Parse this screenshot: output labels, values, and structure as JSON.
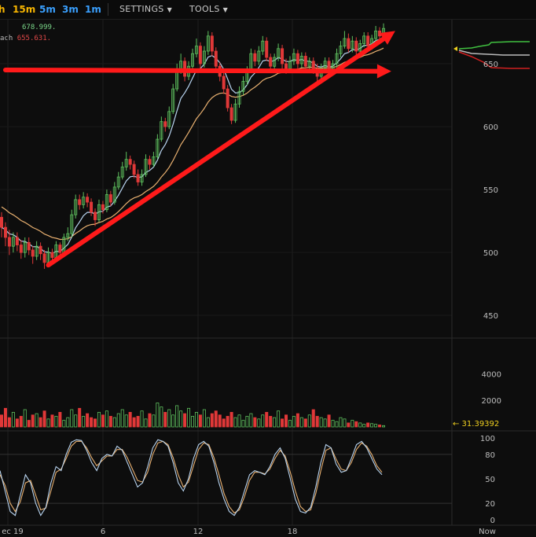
{
  "toolbar": {
    "timeframes": [
      {
        "label": "h",
        "color": "#f7b500"
      },
      {
        "label": "15m",
        "color": "#f7b500"
      },
      {
        "label": "5m",
        "color": "#3aa0ff"
      },
      {
        "label": "3m",
        "color": "#3aa0ff"
      },
      {
        "label": "1m",
        "color": "#3aa0ff"
      }
    ],
    "settings_label": "SETTINGS",
    "tools_label": "TOOLS"
  },
  "legend": {
    "line1_value": "678.999.",
    "line1_color": "#7bd88a",
    "line2_prefix": "ach",
    "line2_value": "655.631.",
    "line2_color": "#e04848"
  },
  "chart_data": {
    "type": "candlestick",
    "price_axis": {
      "ticks": [
        650,
        600,
        550,
        500,
        450
      ],
      "ylim": [
        432,
        685
      ]
    },
    "x_axis": {
      "labels": [
        "ec 19",
        "6",
        "12",
        "18",
        "Now"
      ]
    },
    "candles": [
      [
        528,
        520,
        532,
        512
      ],
      [
        520,
        512,
        524,
        505
      ],
      [
        512,
        505,
        518,
        498
      ],
      [
        505,
        512,
        516,
        500
      ],
      [
        512,
        506,
        516,
        501
      ],
      [
        506,
        500,
        510,
        495
      ],
      [
        500,
        508,
        512,
        496
      ],
      [
        508,
        502,
        512,
        498
      ],
      [
        502,
        497,
        505,
        491
      ],
      [
        497,
        505,
        509,
        494
      ],
      [
        505,
        499,
        508,
        494
      ],
      [
        499,
        492,
        502,
        487
      ],
      [
        492,
        500,
        504,
        489
      ],
      [
        500,
        496,
        503,
        491
      ],
      [
        496,
        506,
        509,
        494
      ],
      [
        506,
        500,
        508,
        496
      ],
      [
        500,
        512,
        515,
        498
      ],
      [
        512,
        515,
        520,
        509
      ],
      [
        515,
        530,
        534,
        512
      ],
      [
        530,
        542,
        546,
        527
      ],
      [
        542,
        538,
        546,
        534
      ],
      [
        538,
        544,
        548,
        535
      ],
      [
        544,
        540,
        547,
        536
      ],
      [
        540,
        532,
        543,
        529
      ],
      [
        532,
        526,
        535,
        521
      ],
      [
        526,
        538,
        542,
        524
      ],
      [
        538,
        534,
        541,
        531
      ],
      [
        534,
        546,
        550,
        532
      ],
      [
        546,
        540,
        549,
        537
      ],
      [
        540,
        552,
        556,
        538
      ],
      [
        552,
        560,
        564,
        550
      ],
      [
        560,
        568,
        572,
        558
      ],
      [
        568,
        574,
        580,
        565
      ],
      [
        574,
        570,
        577,
        566
      ],
      [
        570,
        562,
        573,
        559
      ],
      [
        562,
        556,
        566,
        553
      ],
      [
        556,
        562,
        566,
        553
      ],
      [
        562,
        574,
        578,
        560
      ],
      [
        574,
        570,
        577,
        566
      ],
      [
        570,
        576,
        580,
        568
      ],
      [
        576,
        590,
        594,
        574
      ],
      [
        590,
        604,
        608,
        588
      ],
      [
        604,
        600,
        607,
        596
      ],
      [
        600,
        612,
        616,
        598
      ],
      [
        612,
        630,
        634,
        610
      ],
      [
        630,
        645,
        650,
        628
      ],
      [
        645,
        652,
        658,
        642
      ],
      [
        652,
        640,
        655,
        636
      ],
      [
        640,
        648,
        652,
        637
      ],
      [
        648,
        658,
        662,
        646
      ],
      [
        658,
        664,
        670,
        655
      ],
      [
        664,
        650,
        667,
        646
      ],
      [
        650,
        660,
        664,
        647
      ],
      [
        660,
        672,
        676,
        657
      ],
      [
        672,
        660,
        675,
        656
      ],
      [
        660,
        648,
        663,
        644
      ],
      [
        648,
        640,
        651,
        636
      ],
      [
        640,
        630,
        643,
        626
      ],
      [
        630,
        615,
        633,
        612
      ],
      [
        615,
        605,
        618,
        602
      ],
      [
        605,
        618,
        622,
        603
      ],
      [
        618,
        628,
        632,
        615
      ],
      [
        628,
        636,
        640,
        625
      ],
      [
        636,
        645,
        648,
        633
      ],
      [
        645,
        658,
        662,
        643
      ],
      [
        658,
        652,
        661,
        648
      ],
      [
        652,
        660,
        664,
        649
      ],
      [
        660,
        668,
        672,
        657
      ],
      [
        668,
        655,
        671,
        652
      ],
      [
        655,
        648,
        658,
        645
      ],
      [
        648,
        655,
        658,
        646
      ],
      [
        655,
        662,
        666,
        652
      ],
      [
        662,
        650,
        665,
        646
      ],
      [
        650,
        646,
        654,
        642
      ],
      [
        646,
        652,
        656,
        643
      ],
      [
        652,
        658,
        662,
        649
      ],
      [
        658,
        650,
        661,
        646
      ],
      [
        650,
        656,
        659,
        647
      ],
      [
        656,
        648,
        659,
        645
      ],
      [
        648,
        652,
        655,
        645
      ],
      [
        652,
        646,
        655,
        642
      ],
      [
        646,
        640,
        650,
        636
      ],
      [
        640,
        646,
        650,
        637
      ],
      [
        646,
        652,
        655,
        643
      ],
      [
        652,
        644,
        655,
        641
      ],
      [
        644,
        650,
        653,
        641
      ],
      [
        650,
        658,
        662,
        647
      ],
      [
        658,
        664,
        668,
        655
      ],
      [
        664,
        670,
        676,
        662
      ],
      [
        670,
        662,
        674,
        659
      ],
      [
        662,
        668,
        672,
        659
      ],
      [
        668,
        660,
        671,
        657
      ],
      [
        660,
        666,
        669,
        657
      ],
      [
        666,
        672,
        675,
        663
      ],
      [
        672,
        664,
        675,
        661
      ],
      [
        664,
        670,
        673,
        661
      ],
      [
        670,
        676,
        680,
        667
      ],
      [
        676,
        672,
        679,
        668
      ],
      [
        672,
        678,
        682,
        669
      ]
    ],
    "volume_axis": {
      "ticks": [
        4000,
        2000
      ],
      "ylim": [
        0,
        5200
      ]
    },
    "volume": [
      900,
      1400,
      700,
      1100,
      600,
      800,
      1300,
      500,
      900,
      1000,
      700,
      1200,
      600,
      900,
      800,
      1100,
      500,
      700,
      1300,
      900,
      1400,
      800,
      1000,
      700,
      600,
      1100,
      900,
      1200,
      800,
      700,
      1000,
      1300,
      900,
      1100,
      700,
      800,
      1200,
      600,
      1000,
      900,
      1800,
      1500,
      1100,
      1300,
      900,
      1600,
      1200,
      1000,
      1400,
      800,
      1100,
      900,
      1300,
      700,
      1000,
      1200,
      900,
      600,
      800,
      1100,
      700,
      900,
      500,
      800,
      1000,
      700,
      600,
      900,
      1100,
      800,
      700,
      1200,
      600,
      900,
      500,
      800,
      1000,
      700,
      600,
      900,
      1300,
      800,
      700,
      600,
      900,
      500,
      400,
      700,
      600,
      300,
      500,
      400,
      300,
      200,
      300,
      250,
      200,
      150,
      100
    ],
    "volume_current_label": "31.39392",
    "stochastic_axis": {
      "ticks": [
        100,
        80,
        50,
        20,
        0
      ],
      "ylim": [
        -5,
        105
      ]
    },
    "stoch_k": [
      60,
      35,
      10,
      5,
      30,
      55,
      45,
      20,
      5,
      15,
      45,
      65,
      60,
      80,
      95,
      98,
      97,
      85,
      70,
      60,
      75,
      80,
      78,
      90,
      85,
      70,
      55,
      40,
      45,
      65,
      88,
      98,
      96,
      90,
      70,
      45,
      35,
      50,
      75,
      92,
      96,
      90,
      70,
      45,
      25,
      10,
      5,
      15,
      35,
      55,
      60,
      58,
      55,
      65,
      80,
      88,
      75,
      50,
      25,
      10,
      8,
      15,
      40,
      70,
      92,
      88,
      68,
      58,
      60,
      75,
      92,
      96,
      88,
      75,
      62,
      55
    ],
    "stoch_d": [
      55,
      42,
      20,
      10,
      22,
      45,
      48,
      30,
      12,
      14,
      35,
      58,
      62,
      75,
      90,
      96,
      96,
      88,
      76,
      66,
      72,
      78,
      78,
      86,
      86,
      76,
      62,
      48,
      46,
      58,
      80,
      94,
      96,
      92,
      76,
      55,
      40,
      46,
      66,
      86,
      94,
      92,
      76,
      55,
      32,
      16,
      8,
      12,
      28,
      48,
      58,
      58,
      56,
      62,
      75,
      85,
      78,
      58,
      35,
      16,
      10,
      12,
      32,
      60,
      85,
      88,
      74,
      62,
      60,
      70,
      86,
      94,
      90,
      80,
      66,
      58
    ],
    "ema_fast_color": "#b8d4f0",
    "ema_slow_color": "#e8b070",
    "bull_color": "#5ec05e",
    "bear_color": "#e03838",
    "annotations": [
      {
        "type": "arrow",
        "color": "#ff1a1a",
        "from": [
          1,
          645
        ],
        "to": [
          100,
          644
        ]
      },
      {
        "type": "arrow",
        "color": "#ff1a1a",
        "from": [
          12,
          490
        ],
        "to": [
          101,
          676
        ]
      }
    ],
    "depth": {
      "price_marker_color": "#f0d020",
      "bid_color": "#40c040",
      "ask_color": "#d02020",
      "mid_color": "#bbbbbb"
    }
  }
}
